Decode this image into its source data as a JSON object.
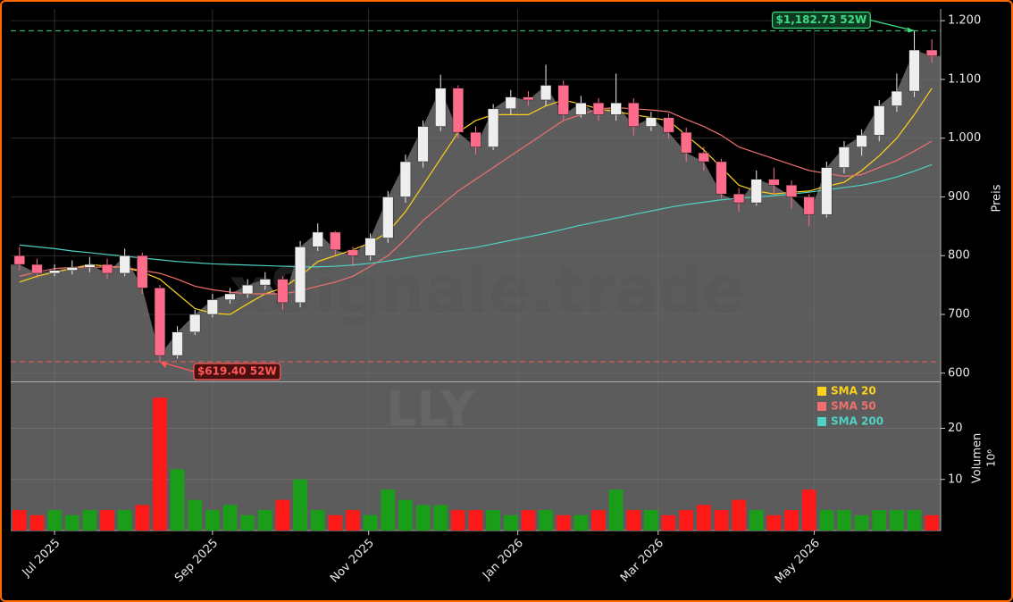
{
  "chart_data": {
    "type": "candlestick",
    "watermark": "xSignale.trade",
    "ticker": "LLY",
    "ylabel": "Preis",
    "xlim": [
      -0.5,
      52.5
    ],
    "xticks": [
      {
        "value": 2,
        "label": "Jul 2025"
      },
      {
        "value": 11,
        "label": "Sep 2025"
      },
      {
        "value": 19.9,
        "label": "Nov 2025"
      },
      {
        "value": 28.4,
        "label": "Jan 2026"
      },
      {
        "value": 36.4,
        "label": "Mar 2026"
      },
      {
        "value": 45.3,
        "label": "May 2026"
      }
    ],
    "ylim": [
      586,
      1220
    ],
    "yticks": [
      600,
      700,
      800,
      900,
      {
        "value": 1000,
        "label": "1.000"
      },
      {
        "value": 1100,
        "label": "1.100"
      },
      {
        "value": 1200,
        "label": "1.200"
      }
    ],
    "grid": true,
    "up_color": "#eeeeee",
    "down_color": "#ff6b8a",
    "area_color": "#5c5c5c",
    "open": [
      800,
      785,
      770,
      775,
      780,
      785,
      770,
      800,
      745,
      630,
      670,
      700,
      725,
      735,
      750,
      760,
      720,
      815,
      840,
      810,
      800,
      830,
      900,
      960,
      1020,
      1085,
      1010,
      985,
      1050,
      1070,
      1065,
      1090,
      1040,
      1060,
      1040,
      1060,
      1020,
      1035,
      1010,
      975,
      960,
      905,
      890,
      930,
      920,
      900,
      870,
      950,
      985,
      1005,
      1055,
      1080,
      1150
    ],
    "high": [
      815,
      795,
      785,
      792,
      798,
      795,
      812,
      805,
      750,
      680,
      708,
      735,
      745,
      760,
      772,
      765,
      825,
      855,
      842,
      815,
      838,
      910,
      972,
      1030,
      1108,
      1090,
      1020,
      1058,
      1082,
      1080,
      1125,
      1098,
      1072,
      1068,
      1110,
      1068,
      1045,
      1042,
      1018,
      985,
      965,
      915,
      945,
      950,
      928,
      905,
      960,
      995,
      1015,
      1065,
      1110,
      1182.73,
      1168
    ],
    "low": [
      775,
      762,
      765,
      768,
      772,
      760,
      765,
      735,
      619.4,
      625,
      665,
      695,
      718,
      728,
      742,
      708,
      712,
      808,
      800,
      782,
      792,
      822,
      890,
      950,
      1012,
      1000,
      972,
      980,
      1040,
      1055,
      1055,
      1030,
      1035,
      1030,
      1030,
      1005,
      1012,
      1000,
      960,
      945,
      898,
      875,
      885,
      905,
      880,
      850,
      865,
      940,
      970,
      995,
      1045,
      1070,
      1128
    ],
    "close": [
      785,
      770,
      775,
      780,
      785,
      770,
      800,
      745,
      630,
      670,
      700,
      725,
      735,
      750,
      760,
      720,
      815,
      840,
      810,
      800,
      830,
      900,
      960,
      1020,
      1085,
      1010,
      985,
      1050,
      1070,
      1065,
      1090,
      1040,
      1060,
      1040,
      1060,
      1020,
      1035,
      1010,
      975,
      960,
      905,
      890,
      930,
      920,
      900,
      870,
      950,
      985,
      1005,
      1055,
      1080,
      1150,
      1140
    ],
    "series": [
      {
        "name": "SMA 20",
        "color": "#ffd21a",
        "values": [
          755,
          765,
          772,
          778,
          785,
          782,
          780,
          772,
          760,
          735,
          710,
          702,
          700,
          718,
          735,
          745,
          765,
          790,
          800,
          810,
          822,
          840,
          875,
          920,
          965,
          1010,
          1030,
          1040,
          1040,
          1040,
          1055,
          1065,
          1058,
          1050,
          1045,
          1040,
          1035,
          1030,
          1005,
          980,
          950,
          920,
          910,
          905,
          908,
          910,
          918,
          925,
          945,
          970,
          1000,
          1040,
          1085
        ]
      },
      {
        "name": "SMA 50",
        "color": "#f07070",
        "values": [
          765,
          772,
          778,
          780,
          780,
          781,
          780,
          775,
          770,
          760,
          748,
          742,
          738,
          735,
          735,
          735,
          740,
          748,
          755,
          765,
          782,
          800,
          828,
          860,
          885,
          910,
          930,
          950,
          970,
          990,
          1010,
          1030,
          1040,
          1050,
          1052,
          1050,
          1048,
          1045,
          1032,
          1020,
          1005,
          985,
          975,
          965,
          955,
          945,
          940,
          935,
          938,
          950,
          962,
          978,
          995
        ]
      },
      {
        "name": "SMA 200",
        "color": "#4fd1c5",
        "values": [
          818,
          815,
          812,
          808,
          805,
          802,
          799,
          796,
          793,
          790,
          788,
          786,
          785,
          784,
          783,
          782,
          781,
          781,
          782,
          784,
          787,
          791,
          796,
          801,
          806,
          810,
          814,
          820,
          826,
          832,
          838,
          845,
          852,
          858,
          864,
          870,
          876,
          882,
          887,
          891,
          895,
          898,
          900,
          902,
          905,
          908,
          912,
          916,
          920,
          926,
          934,
          944,
          955
        ]
      }
    ],
    "annotations": [
      {
        "value": 1182.73,
        "label": "$1,182.73 52W",
        "color": "#3ddc84"
      },
      {
        "value": 619.4,
        "label": "$619.40 52W",
        "color": "#ff5a5a"
      }
    ],
    "volume": {
      "ylabel": "Volumen",
      "exponent": "10⁶",
      "ylim": [
        0,
        29
      ],
      "yticks": [
        10,
        20
      ],
      "up_color": "#1a9e1a",
      "down_color": "#ff1a1a",
      "values": [
        4,
        3,
        4,
        3,
        4,
        4,
        4,
        5,
        26,
        12,
        6,
        4,
        5,
        3,
        4,
        6,
        10,
        4,
        3,
        4,
        3,
        8,
        6,
        5,
        5,
        4,
        4,
        4,
        3,
        4,
        4,
        3,
        3,
        4,
        8,
        4,
        4,
        3,
        4,
        5,
        4,
        6,
        4,
        3,
        4,
        8,
        4,
        4,
        3,
        4,
        4,
        4,
        3
      ]
    }
  }
}
